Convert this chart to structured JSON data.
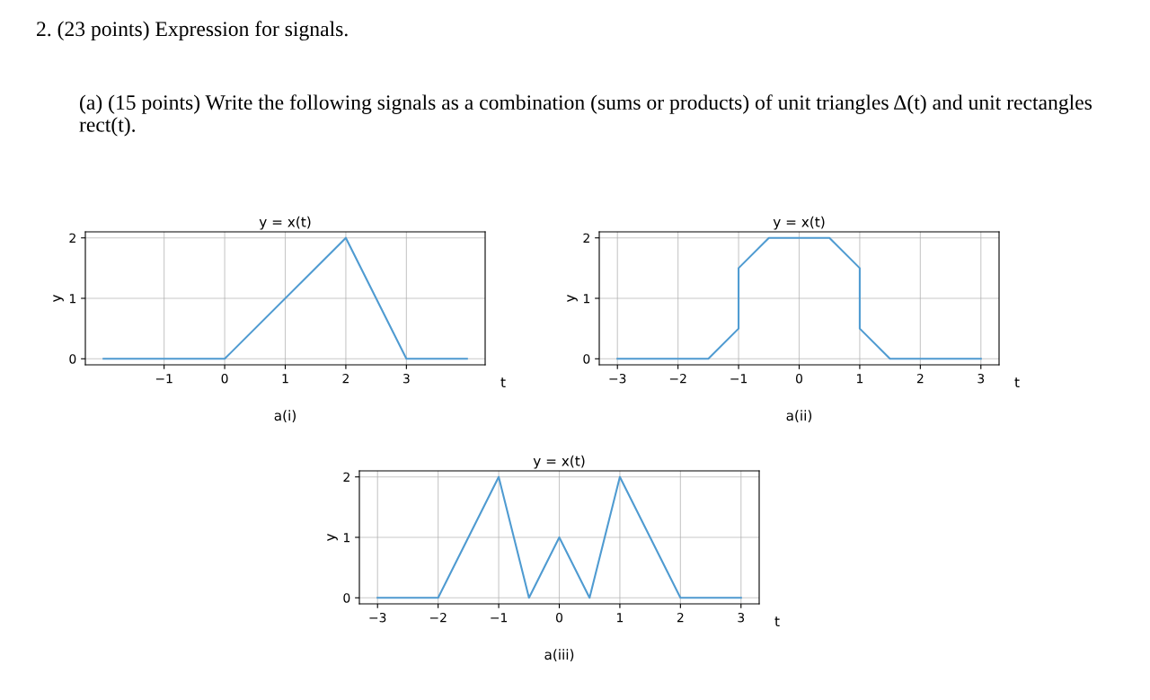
{
  "chart_data": [
    {
      "type": "line",
      "title": "y = x(t)",
      "xlabel": "t",
      "ylabel": "y",
      "x": [
        -2,
        0,
        2,
        3,
        4
      ],
      "series": [
        {
          "color": "#4f9bd1",
          "values": [
            0,
            0,
            2,
            0,
            0
          ]
        }
      ],
      "xlim": [
        -2.3,
        4.3
      ],
      "ylim": [
        -0.1,
        2.1
      ],
      "xticks": [
        -1,
        0,
        1,
        2,
        3
      ],
      "yticks": [
        0,
        1,
        2
      ],
      "grid": true,
      "marker": "none",
      "line_style": "solid",
      "annotations": [
        "2. (23 points) Expression for signals.",
        "(a) (15 points) Write the following signals as a combination (sums or products) of unit triangles Δ(t) and unit rectangles rect(t).",
        "a(i)"
      ]
    },
    {
      "type": "line",
      "title": "y = x(t)",
      "xlabel": "t",
      "ylabel": "y",
      "x": [
        -3,
        -1.5,
        -1,
        -1,
        -0.5,
        0.5,
        1,
        1,
        1.5,
        3
      ],
      "series": [
        {
          "color": "#4f9bd1",
          "values": [
            0,
            0,
            0.5,
            1.5,
            2,
            2,
            1.5,
            0.5,
            0,
            0
          ]
        }
      ],
      "xlim": [
        -3.3,
        3.3
      ],
      "ylim": [
        -0.1,
        2.1
      ],
      "xticks": [
        -3,
        -2,
        -1,
        0,
        1,
        2,
        3
      ],
      "yticks": [
        0,
        1,
        2
      ],
      "grid": true,
      "marker": "none",
      "line_style": "solid",
      "annotations": [
        "a(ii)"
      ]
    },
    {
      "type": "line",
      "title": "y = x(t)",
      "xlabel": "t",
      "ylabel": "y",
      "x": [
        -3,
        -2,
        -1,
        -0.5,
        0,
        0.5,
        1,
        2,
        3
      ],
      "series": [
        {
          "color": "#4f9bd1",
          "values": [
            0,
            0,
            2,
            0,
            1,
            0,
            2,
            0,
            0
          ]
        }
      ],
      "xlim": [
        -3.3,
        3.3
      ],
      "ylim": [
        -0.1,
        2.1
      ],
      "xticks": [
        -3,
        -2,
        -1,
        0,
        1,
        2,
        3
      ],
      "yticks": [
        0,
        1,
        2
      ],
      "grid": true,
      "marker": "none",
      "line_style": "solid",
      "annotations": [
        "a(iii)"
      ]
    }
  ]
}
